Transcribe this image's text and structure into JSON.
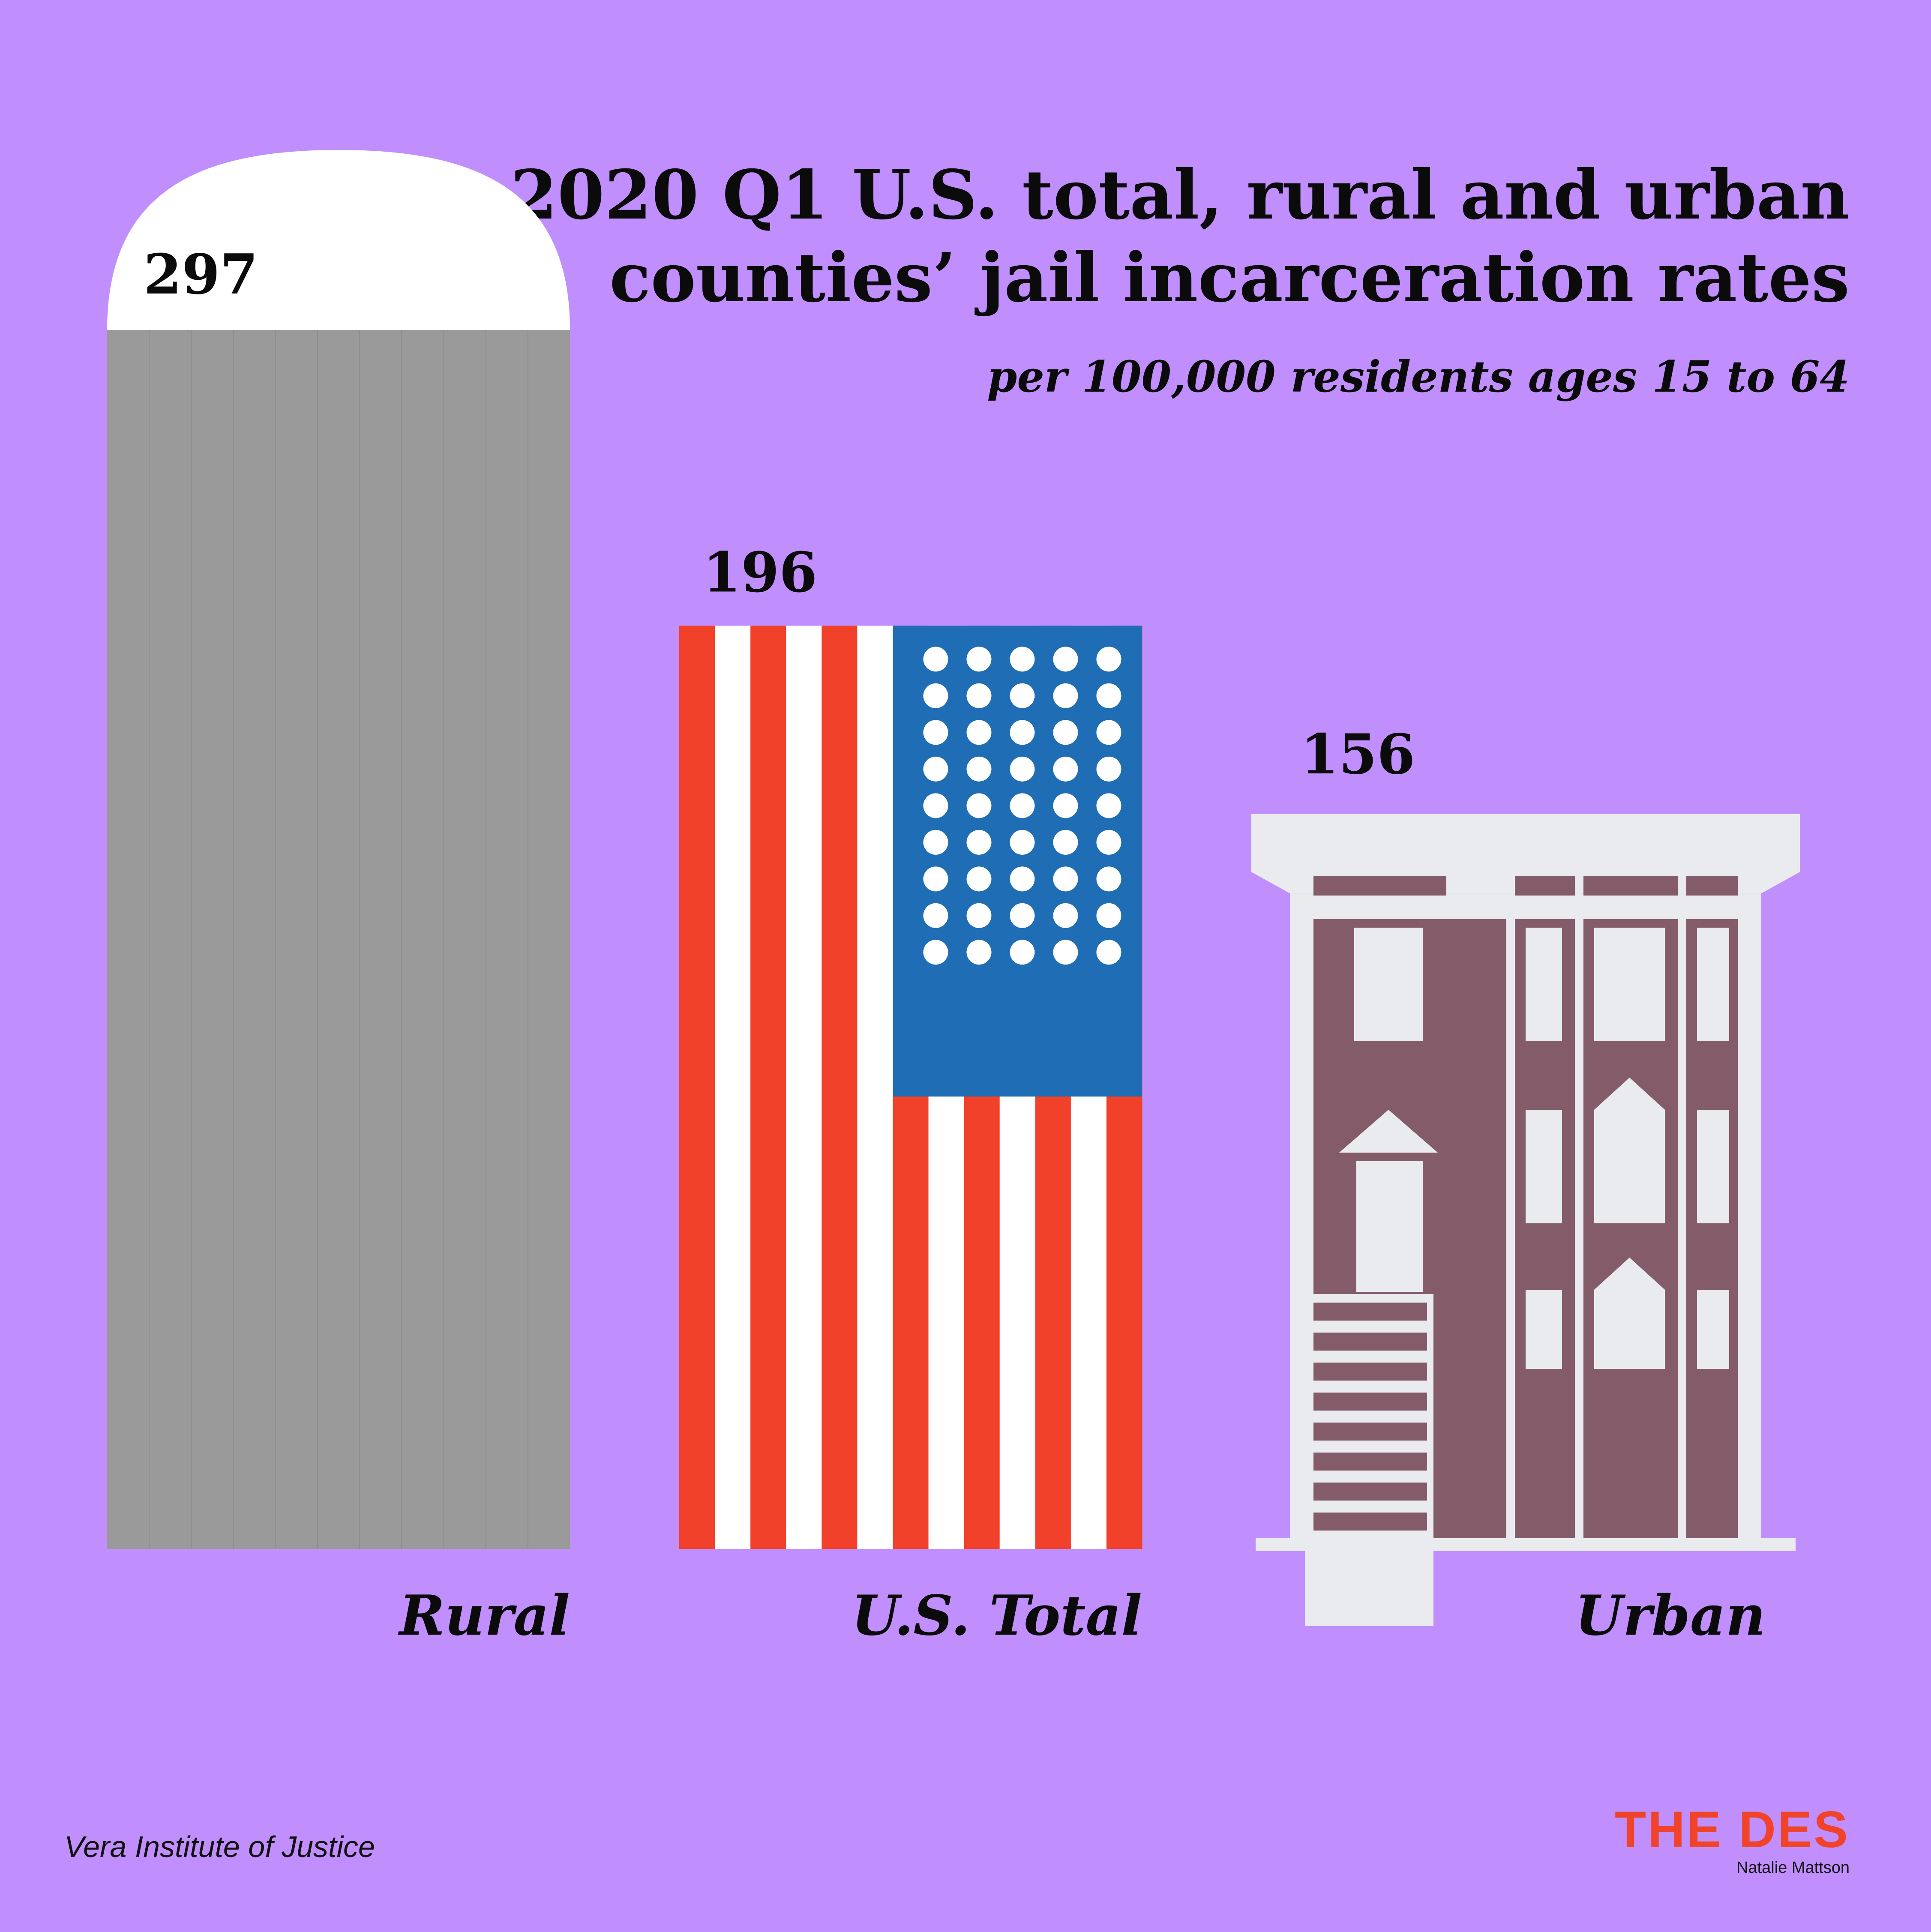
{
  "title": "2020 Q1 U.S. total, rural and urban counties’ jail incarceration rates",
  "subtitle": "per 100,000 residents ages 15 to 64",
  "source": "Vera Institute of Justice",
  "brand": {
    "logo": "THE DES",
    "author": "Natalie Mattson"
  },
  "colors": {
    "background": "#c08ffd",
    "rural_bar": "#9a9a9a",
    "rural_cap": "#ffffff",
    "flag_red": "#f2412a",
    "flag_white": "#ffffff",
    "flag_blue": "#1f6db4",
    "building_wall": "#845c69",
    "building_trim": "#e9ebee"
  },
  "chart_data": {
    "type": "bar",
    "title": "2020 Q1 U.S. total, rural and urban counties’ jail incarceration rates",
    "subtitle": "per 100,000 residents ages 15 to 64",
    "categories": [
      "Rural",
      "U.S. Total",
      "Urban"
    ],
    "values": [
      297,
      196,
      156
    ],
    "value_labels": [
      "297",
      "196",
      "156"
    ],
    "bar_styles": [
      "silo",
      "us-flag",
      "rowhouse-building"
    ],
    "ylim": [
      0,
      297
    ],
    "grid": false,
    "xlabel": "",
    "ylabel": ""
  }
}
